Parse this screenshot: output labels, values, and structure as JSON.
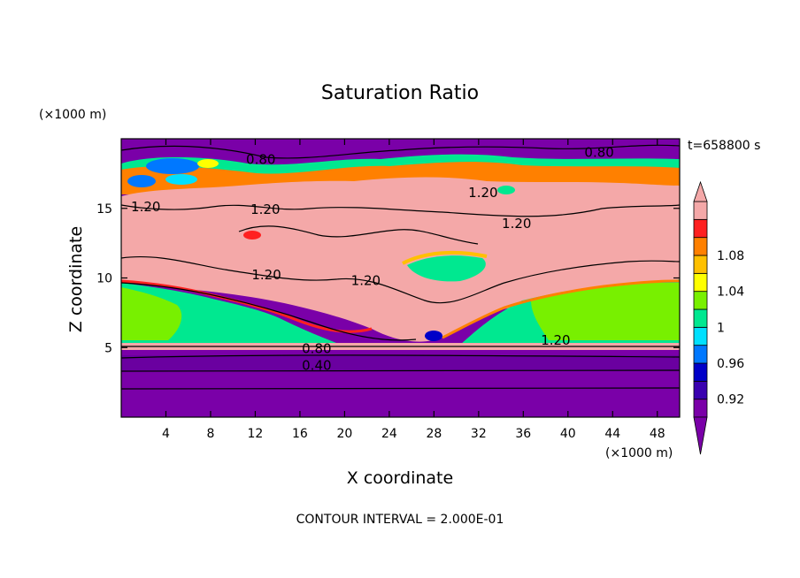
{
  "chart_data": {
    "type": "heatmap",
    "title": "Saturation Ratio",
    "xlabel": "X coordinate",
    "ylabel": "Z coordinate",
    "x_unit": "(×1000 m)",
    "y_unit": "(×1000 m)",
    "time_label": "t=658800 s",
    "footer": "CONTOUR INTERVAL = 2.000E-01",
    "xlim": [
      0,
      50
    ],
    "ylim": [
      0,
      20
    ],
    "x_ticks": [
      4,
      8,
      12,
      16,
      20,
      24,
      28,
      32,
      36,
      40,
      44,
      48
    ],
    "y_ticks": [
      5,
      10,
      15
    ],
    "colorbar": {
      "levels": [
        0.92,
        0.96,
        1,
        1.04,
        1.08
      ],
      "colors": [
        "#7a00a8",
        "#3a00b0",
        "#0000c8",
        "#0078ff",
        "#00e0ff",
        "#00e890",
        "#78f000",
        "#ffff00",
        "#ffc000",
        "#ff8000",
        "#ff2020",
        "#f4a8a8"
      ]
    },
    "contour_labels": [
      {
        "text": "0.80",
        "x": 12.5,
        "z": 18.2
      },
      {
        "text": "0.80",
        "x": 42.8,
        "z": 18.7
      },
      {
        "text": "1.20",
        "x": 2.2,
        "z": 14.8
      },
      {
        "text": "1.20",
        "x": 12.9,
        "z": 14.6
      },
      {
        "text": "1.20",
        "x": 35.4,
        "z": 13.6
      },
      {
        "text": "1.20",
        "x": 32.4,
        "z": 15.8
      },
      {
        "text": "1.20",
        "x": 13.0,
        "z": 9.9
      },
      {
        "text": "1.20",
        "x": 21.9,
        "z": 9.5
      },
      {
        "text": "1.20",
        "x": 38.9,
        "z": 5.2
      },
      {
        "text": "0.80",
        "x": 17.5,
        "z": 4.6
      },
      {
        "text": "0.40",
        "x": 17.5,
        "z": 3.4
      }
    ]
  }
}
